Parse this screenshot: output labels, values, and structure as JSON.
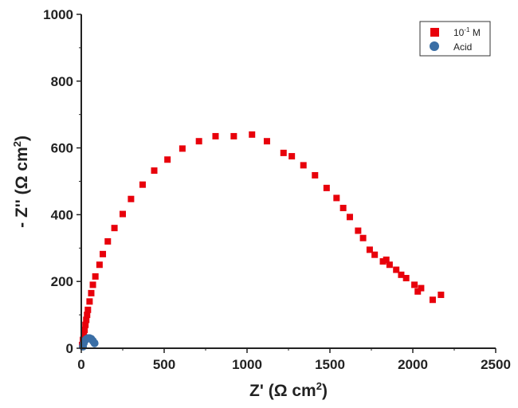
{
  "chart_data": {
    "type": "scatter",
    "title": "",
    "xlabel": {
      "text": "Z' (Ω cm",
      "sup": "2",
      "tail": ")"
    },
    "ylabel": {
      "text": "- Z'' (Ω cm",
      "sup": "2",
      "tail": ")"
    },
    "xlim": [
      0,
      2500
    ],
    "ylim": [
      0,
      1000
    ],
    "xticks": [
      "0",
      "500",
      "1000",
      "1500",
      "2000",
      "2500"
    ],
    "yticks": [
      "0",
      "200",
      "400",
      "600",
      "800",
      "1000"
    ],
    "grid": false,
    "legend_position": "top-right",
    "series": [
      {
        "name": "10⁻¹ M",
        "legend_base": "10",
        "legend_sup": "-1",
        "legend_tail": " M",
        "marker": "square",
        "color": "#e8000b",
        "x": [
          5,
          10,
          15,
          20,
          25,
          30,
          35,
          40,
          50,
          60,
          70,
          85,
          110,
          130,
          160,
          200,
          250,
          300,
          370,
          440,
          520,
          610,
          710,
          810,
          920,
          1030,
          1120,
          1220,
          1270,
          1340,
          1410,
          1480,
          1540,
          1580,
          1620,
          1670,
          1700,
          1740,
          1770,
          1820,
          1840,
          1860,
          1900,
          1930,
          1960,
          2010,
          2030,
          2050,
          2120,
          2170
        ],
        "y": [
          10,
          25,
          40,
          55,
          70,
          85,
          100,
          115,
          140,
          165,
          190,
          215,
          250,
          282,
          320,
          360,
          402,
          447,
          490,
          532,
          565,
          598,
          620,
          635,
          635,
          640,
          620,
          585,
          575,
          548,
          518,
          480,
          450,
          420,
          393,
          352,
          330,
          295,
          280,
          260,
          265,
          250,
          235,
          220,
          210,
          190,
          170,
          180,
          145,
          160
        ]
      },
      {
        "name": "Acid",
        "marker": "circle",
        "color": "#3a6ea5",
        "x": [
          10,
          15,
          20,
          30,
          40,
          50,
          60,
          70,
          80
        ],
        "y": [
          5,
          15,
          22,
          27,
          30,
          30,
          28,
          22,
          15
        ]
      }
    ]
  }
}
